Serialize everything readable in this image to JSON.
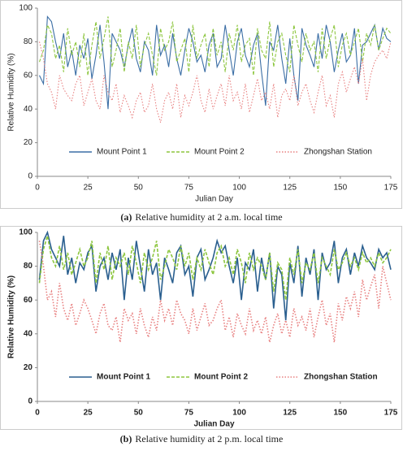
{
  "chart_data": [
    {
      "type": "line",
      "caption_label": "(a)",
      "caption": "Relative humidity at 2 a.m. local time",
      "x_label": "Julian Day",
      "y_label": "Relative Humidity (%)",
      "xlim": [
        0,
        175
      ],
      "xticks": [
        0,
        25,
        50,
        75,
        100,
        125,
        150,
        175
      ],
      "ylim": [
        0,
        100
      ],
      "yticks": [
        0,
        20,
        40,
        60,
        80,
        100
      ],
      "legend": "lower",
      "x": [
        1,
        3,
        5,
        7,
        9,
        11,
        13,
        15,
        17,
        19,
        21,
        23,
        25,
        27,
        29,
        31,
        33,
        35,
        37,
        39,
        41,
        43,
        45,
        47,
        49,
        51,
        53,
        55,
        57,
        59,
        61,
        63,
        65,
        67,
        69,
        71,
        73,
        75,
        77,
        79,
        81,
        83,
        85,
        87,
        89,
        91,
        93,
        95,
        97,
        99,
        101,
        103,
        105,
        107,
        109,
        111,
        113,
        115,
        117,
        119,
        121,
        123,
        125,
        127,
        129,
        131,
        133,
        135,
        137,
        139,
        141,
        143,
        145,
        147,
        149,
        151,
        153,
        155,
        157,
        159,
        161,
        163,
        165,
        167,
        169,
        171,
        173,
        175
      ],
      "series": [
        {
          "name": "Mount Point 1",
          "color": "#3b6ea5",
          "style": "solid",
          "values": [
            60,
            55,
            95,
            92,
            80,
            70,
            85,
            65,
            75,
            60,
            78,
            70,
            82,
            58,
            72,
            90,
            68,
            40,
            85,
            80,
            75,
            65,
            78,
            88,
            70,
            62,
            80,
            75,
            60,
            90,
            72,
            78,
            65,
            85,
            70,
            60,
            75,
            88,
            80,
            68,
            72,
            62,
            78,
            85,
            65,
            70,
            90,
            75,
            60,
            80,
            88,
            72,
            65,
            78,
            85,
            62,
            42,
            80,
            75,
            90,
            70,
            55,
            82,
            60,
            45,
            88,
            78,
            72,
            65,
            85,
            70,
            90,
            80,
            62,
            75,
            85,
            68,
            72,
            88,
            55,
            78,
            80,
            85,
            90,
            75,
            88,
            82,
            80
          ]
        },
        {
          "name": "Mount Point 2",
          "color": "#8dc63f",
          "style": "dashed",
          "values": [
            68,
            75,
            90,
            85,
            70,
            78,
            62,
            88,
            72,
            80,
            65,
            85,
            60,
            78,
            92,
            70,
            82,
            95,
            65,
            75,
            88,
            62,
            80,
            70,
            90,
            65,
            78,
            85,
            72,
            60,
            88,
            75,
            80,
            92,
            68,
            75,
            82,
            62,
            90,
            70,
            78,
            85,
            65,
            88,
            72,
            80,
            62,
            85,
            75,
            90,
            68,
            78,
            82,
            60,
            88,
            75,
            70,
            92,
            65,
            80,
            85,
            72,
            62,
            90,
            78,
            68,
            85,
            75,
            80,
            62,
            88,
            70,
            82,
            90,
            65,
            78,
            85,
            72,
            80,
            88,
            68,
            85,
            78,
            90,
            75,
            82,
            88,
            85
          ]
        },
        {
          "name": "Zhongshan Station",
          "color": "#e88080",
          "style": "dotted",
          "values": [
            80,
            70,
            55,
            50,
            40,
            60,
            52,
            48,
            45,
            55,
            60,
            42,
            50,
            58,
            45,
            40,
            60,
            50,
            45,
            55,
            38,
            48,
            42,
            35,
            45,
            50,
            38,
            42,
            55,
            40,
            32,
            45,
            50,
            40,
            55,
            35,
            48,
            42,
            50,
            60,
            45,
            38,
            52,
            40,
            48,
            55,
            42,
            60,
            45,
            50,
            40,
            55,
            38,
            48,
            58,
            45,
            50,
            40,
            55,
            35,
            48,
            52,
            45,
            60,
            42,
            50,
            55,
            45,
            38,
            50,
            60,
            42,
            48,
            35,
            55,
            62,
            50,
            58,
            65,
            55,
            70,
            45,
            60,
            68,
            72,
            75,
            70,
            80
          ]
        }
      ]
    },
    {
      "type": "line",
      "caption_label": "(b)",
      "caption": "Relative humidity at 2 p.m. local time",
      "x_label": "Julian Day",
      "y_label": "Relative Humidity (%)",
      "xlim": [
        0,
        175
      ],
      "xticks": [
        0,
        25,
        50,
        75,
        100,
        125,
        150,
        175
      ],
      "ylim": [
        0,
        100
      ],
      "yticks": [
        0,
        20,
        40,
        60,
        80,
        100
      ],
      "legend": "lower",
      "x": [
        1,
        3,
        5,
        7,
        9,
        11,
        13,
        15,
        17,
        19,
        21,
        23,
        25,
        27,
        29,
        31,
        33,
        35,
        37,
        39,
        41,
        43,
        45,
        47,
        49,
        51,
        53,
        55,
        57,
        59,
        61,
        63,
        65,
        67,
        69,
        71,
        73,
        75,
        77,
        79,
        81,
        83,
        85,
        87,
        89,
        91,
        93,
        95,
        97,
        99,
        101,
        103,
        105,
        107,
        109,
        111,
        113,
        115,
        117,
        119,
        121,
        123,
        125,
        127,
        129,
        131,
        133,
        135,
        137,
        139,
        141,
        143,
        145,
        147,
        149,
        151,
        153,
        155,
        157,
        159,
        161,
        163,
        165,
        167,
        169,
        171,
        173,
        175
      ],
      "series": [
        {
          "name": "Mount Point 1",
          "color": "#2a5f8f",
          "style": "solid",
          "values": [
            72,
            95,
            100,
            90,
            85,
            80,
            98,
            75,
            85,
            70,
            82,
            78,
            88,
            92,
            65,
            80,
            85,
            72,
            88,
            78,
            90,
            60,
            85,
            72,
            95,
            80,
            65,
            90,
            75,
            82,
            60,
            85,
            78,
            70,
            88,
            92,
            75,
            80,
            62,
            85,
            90,
            72,
            78,
            85,
            95,
            88,
            92,
            80,
            70,
            85,
            60,
            82,
            78,
            90,
            65,
            85,
            72,
            88,
            55,
            80,
            75,
            48,
            82,
            70,
            92,
            62,
            85,
            75,
            90,
            60,
            88,
            78,
            82,
            95,
            70,
            85,
            90,
            75,
            88,
            80,
            92,
            85,
            82,
            78,
            90,
            85,
            88,
            78
          ]
        },
        {
          "name": "Mount Point 2",
          "color": "#8dc63f",
          "style": "dashed",
          "values": [
            70,
            90,
            98,
            85,
            80,
            92,
            78,
            88,
            75,
            82,
            90,
            80,
            85,
            95,
            70,
            88,
            78,
            92,
            72,
            85,
            80,
            88,
            75,
            92,
            82,
            70,
            88,
            78,
            85,
            95,
            72,
            80,
            90,
            85,
            78,
            92,
            80,
            88,
            72,
            85,
            78,
            90,
            82,
            75,
            88,
            92,
            80,
            85,
            75,
            90,
            82,
            70,
            88,
            78,
            85,
            80,
            72,
            88,
            65,
            82,
            78,
            60,
            85,
            75,
            90,
            70,
            82,
            78,
            88,
            70,
            85,
            80,
            75,
            90,
            78,
            82,
            88,
            80,
            85,
            78,
            88,
            82,
            85,
            80,
            88,
            82,
            85,
            90
          ]
        },
        {
          "name": "Zhongshan Station",
          "color": "#e88080",
          "style": "dotted",
          "values": [
            95,
            80,
            60,
            65,
            50,
            70,
            55,
            48,
            58,
            45,
            52,
            60,
            55,
            48,
            40,
            52,
            58,
            45,
            42,
            50,
            35,
            55,
            48,
            52,
            40,
            55,
            45,
            38,
            50,
            42,
            60,
            48,
            55,
            45,
            60,
            52,
            48,
            40,
            55,
            42,
            50,
            58,
            45,
            48,
            55,
            60,
            42,
            50,
            38,
            52,
            45,
            40,
            55,
            42,
            48,
            40,
            50,
            35,
            45,
            52,
            40,
            48,
            38,
            55,
            45,
            50,
            42,
            55,
            38,
            50,
            60,
            45,
            52,
            35,
            58,
            48,
            62,
            55,
            65,
            50,
            72,
            60,
            68,
            75,
            55,
            80,
            70,
            60
          ]
        }
      ]
    }
  ]
}
